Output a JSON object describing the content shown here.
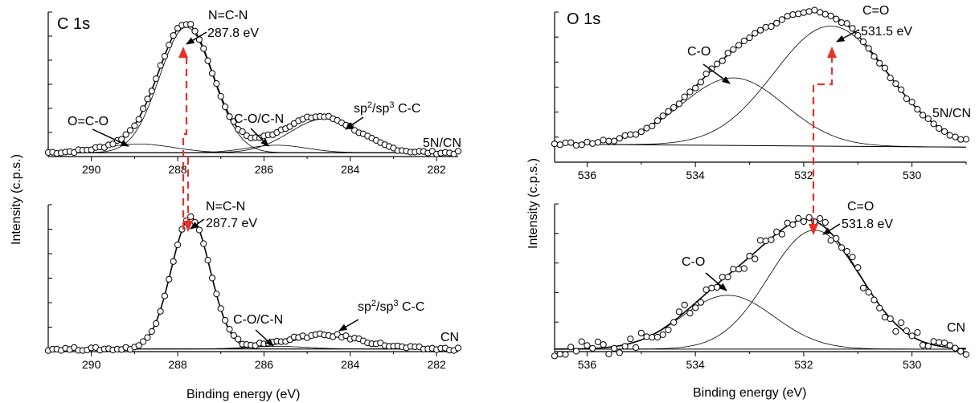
{
  "colors": {
    "axis": "#000000",
    "marker": "#000000",
    "fit": "#000000",
    "arrow_red": "#e8302a"
  },
  "chart_data": [
    {
      "type": "scatter",
      "panel": "C1s-5NCN",
      "title": "C 1s",
      "sample_label": "5N/CN",
      "xlim": [
        291,
        281.5
      ],
      "x_reversed": true,
      "x_ticks": [
        290,
        288,
        286,
        284,
        282
      ],
      "show_tick_labels": true,
      "ylabel": "Intensity (c.p.s.)",
      "y_ticks_count": 6,
      "baseline": 0.03,
      "peaks": [
        {
          "name": "N=C-N",
          "center": 287.8,
          "height": 1.0,
          "sigma": 0.62
        },
        {
          "name": "O=C-O",
          "center": 288.9,
          "height": 0.07,
          "sigma": 0.8
        },
        {
          "name": "C-O/C-N",
          "center": 285.7,
          "height": 0.06,
          "sigma": 0.7
        },
        {
          "name": "sp2/sp3 C-C",
          "center": 284.6,
          "height": 0.27,
          "sigma": 0.8
        }
      ],
      "points_step": 0.1,
      "annotations": [
        {
          "text": "N=C-N",
          "sub": "287.8 eV"
        },
        {
          "text": "O=C-O"
        },
        {
          "text": "C-O/C-N"
        },
        {
          "text": "sp",
          "sup1": "2",
          "mid": "/sp",
          "sup2": "3",
          "tail": " C-C"
        }
      ]
    },
    {
      "type": "scatter",
      "panel": "C1s-CN",
      "sample_label": "CN",
      "xlim": [
        291,
        281.5
      ],
      "x_reversed": true,
      "x_ticks": [
        290,
        288,
        286,
        284,
        282
      ],
      "show_tick_labels": true,
      "xlabel": "Binding energy (eV)",
      "y_ticks_count": 6,
      "baseline": 0.02,
      "peaks": [
        {
          "name": "N=C-N",
          "center": 287.7,
          "height": 1.0,
          "sigma": 0.45
        },
        {
          "name": "C-O/C-N",
          "center": 285.7,
          "height": 0.02,
          "sigma": 0.7
        },
        {
          "name": "sp2/sp3 C-C",
          "center": 284.5,
          "height": 0.1,
          "sigma": 0.85
        }
      ],
      "points_step": 0.1,
      "annotations": [
        {
          "text": "N=C-N",
          "sub": "287.7 eV"
        },
        {
          "text": "C-O/C-N"
        },
        {
          "text": "sp",
          "sup1": "2",
          "mid": "/sp",
          "sup2": "3",
          "tail": " C-C"
        }
      ]
    },
    {
      "type": "scatter",
      "panel": "O1s-5NCN",
      "title": "O 1s",
      "sample_label": "5N/CN",
      "xlim": [
        536.6,
        529
      ],
      "x_reversed": true,
      "x_ticks": [
        536,
        534,
        532,
        530
      ],
      "show_tick_labels": true,
      "ylabel": "Intensity (c.p.s.)",
      "y_ticks_count": 6,
      "baseline_start": 0.12,
      "baseline_end": 0.1,
      "peaks": [
        {
          "name": "C=O",
          "center": 531.5,
          "height": 0.8,
          "sigma": 1.05
        },
        {
          "name": "C-O",
          "center": 533.3,
          "height": 0.45,
          "sigma": 0.95
        }
      ],
      "points_step": 0.1,
      "annotations": [
        {
          "text": "C=O",
          "sub": "531.5 eV"
        },
        {
          "text": "C-O"
        }
      ]
    },
    {
      "type": "scatter",
      "panel": "O1s-CN",
      "sample_label": "CN",
      "xlim": [
        536.6,
        529
      ],
      "x_reversed": true,
      "x_ticks": [
        536,
        534,
        532,
        530
      ],
      "show_tick_labels": true,
      "xlabel": "Binding energy (eV)",
      "y_ticks_count": 5,
      "baseline": 0.02,
      "peaks": [
        {
          "name": "C=O",
          "center": 531.8,
          "height": 0.95,
          "sigma": 0.85
        },
        {
          "name": "C-O",
          "center": 533.4,
          "height": 0.43,
          "sigma": 0.85
        }
      ],
      "points_step": 0.1,
      "noise": 0.06,
      "annotations": [
        {
          "text": "C=O",
          "sub": "531.8 eV"
        },
        {
          "text": "C-O"
        }
      ]
    }
  ]
}
